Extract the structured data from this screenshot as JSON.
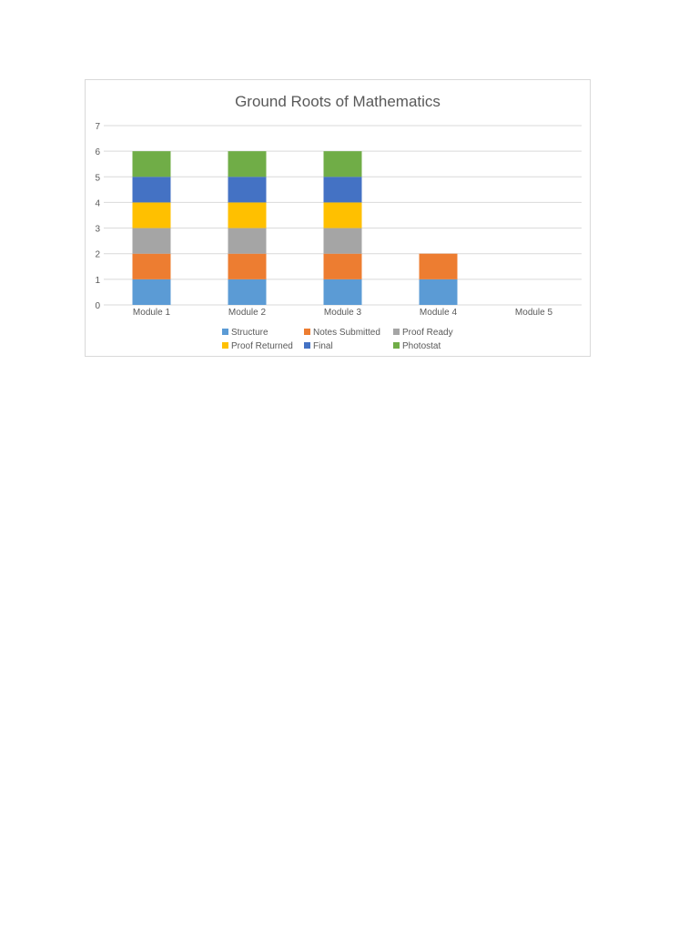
{
  "chart_data": {
    "type": "bar",
    "stacked": true,
    "title": "Ground Roots of Mathematics",
    "xlabel": "",
    "ylabel": "",
    "ylim": [
      0,
      7
    ],
    "yticks": [
      0,
      1,
      2,
      3,
      4,
      5,
      6,
      7
    ],
    "grid": true,
    "legend_position": "bottom",
    "categories": [
      "Module 1",
      "Module 2",
      "Module 3",
      "Module 4",
      "Module 5"
    ],
    "series": [
      {
        "name": "Structure",
        "color": "#5B9BD5",
        "values": [
          1,
          1,
          1,
          1,
          0
        ]
      },
      {
        "name": "Notes Submitted",
        "color": "#ED7D31",
        "values": [
          1,
          1,
          1,
          1,
          0
        ]
      },
      {
        "name": "Proof Ready",
        "color": "#A5A5A5",
        "values": [
          1,
          1,
          1,
          0,
          0
        ]
      },
      {
        "name": "Proof Returned",
        "color": "#FFC000",
        "values": [
          1,
          1,
          1,
          0,
          0
        ]
      },
      {
        "name": "Final",
        "color": "#4472C4",
        "values": [
          1,
          1,
          1,
          0,
          0
        ]
      },
      {
        "name": "Photostat",
        "color": "#70AD47",
        "values": [
          1,
          1,
          1,
          0,
          0
        ]
      }
    ]
  }
}
